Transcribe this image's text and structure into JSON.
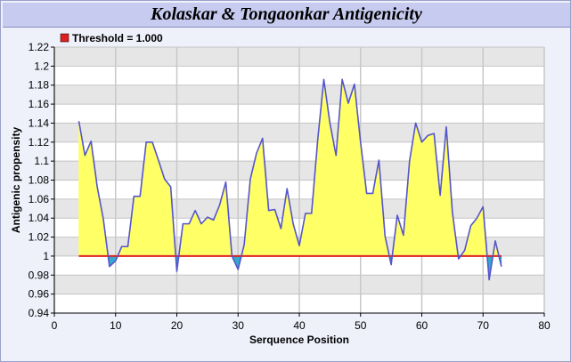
{
  "chart_data": {
    "type": "area",
    "title": "Kolaskar & Tongaonkar Antigenicity",
    "xlabel": "Serquence Position",
    "ylabel": "Antigenic propensity",
    "xlim": [
      0,
      80
    ],
    "ylim": [
      0.94,
      1.22
    ],
    "x_ticks": [
      "0",
      "10",
      "20",
      "30",
      "40",
      "50",
      "60",
      "70",
      "80"
    ],
    "y_ticks": [
      "0.94",
      "0.96",
      "0.98",
      "1",
      "1.02",
      "1.04",
      "1.06",
      "1.08",
      "1.1",
      "1.12",
      "1.14",
      "1.16",
      "1.18",
      "1.2",
      "1.22"
    ],
    "grid": true,
    "legend": {
      "position": "top-left",
      "label": "Threshold = 1.000",
      "color": "#e02020"
    },
    "threshold": 1.0,
    "threshold_x": [
      4,
      73
    ],
    "colors": {
      "area_above": "#ffff66",
      "area_below": "#33aacc",
      "line": "#5555cc",
      "threshold": "#e02020",
      "band": "#e6e6e6"
    },
    "series": [
      {
        "x": [
          4,
          5,
          6,
          7,
          8,
          9,
          10,
          11,
          12,
          13,
          14,
          15,
          16,
          17,
          18,
          19,
          20,
          21,
          22,
          23,
          24,
          25,
          26,
          27,
          28,
          29,
          30,
          31,
          32,
          33,
          34,
          35,
          36,
          37,
          38,
          39,
          40,
          41,
          42,
          43,
          44,
          45,
          46,
          47,
          48,
          49,
          50,
          51,
          52,
          53,
          54,
          55,
          56,
          57,
          58,
          59,
          60,
          61,
          62,
          63,
          64,
          65,
          66,
          67,
          68,
          69,
          70,
          71,
          72,
          73
        ],
        "y": [
          1.142,
          1.106,
          1.121,
          1.073,
          1.039,
          0.989,
          0.995,
          1.01,
          1.01,
          1.063,
          1.063,
          1.12,
          1.12,
          1.101,
          1.081,
          1.073,
          0.984,
          1.034,
          1.034,
          1.048,
          1.034,
          1.041,
          1.038,
          1.054,
          1.078,
          1.0,
          0.986,
          1.012,
          1.081,
          1.108,
          1.124,
          1.048,
          1.049,
          1.029,
          1.071,
          1.034,
          1.011,
          1.045,
          1.045,
          1.122,
          1.186,
          1.14,
          1.106,
          1.186,
          1.161,
          1.181,
          1.12,
          1.066,
          1.066,
          1.101,
          1.021,
          0.991,
          1.043,
          1.022,
          1.1,
          1.14,
          1.12,
          1.127,
          1.129,
          1.064,
          1.136,
          1.046,
          0.997,
          1.006,
          1.032,
          1.04,
          1.052,
          0.975,
          1.016,
          0.989
        ]
      }
    ]
  }
}
